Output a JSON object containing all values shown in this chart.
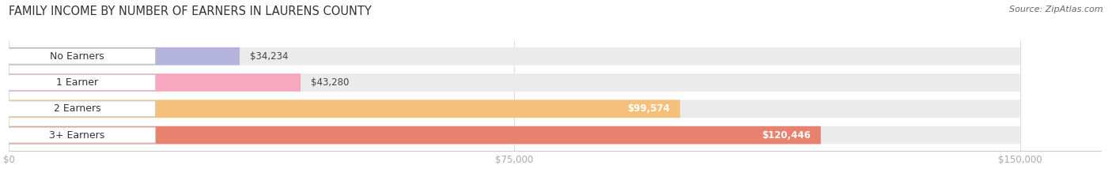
{
  "title": "FAMILY INCOME BY NUMBER OF EARNERS IN LAURENS COUNTY",
  "source": "Source: ZipAtlas.com",
  "categories": [
    "No Earners",
    "1 Earner",
    "2 Earners",
    "3+ Earners"
  ],
  "values": [
    34234,
    43280,
    99574,
    120446
  ],
  "bar_colors": [
    "#b3b3dd",
    "#f7a8c0",
    "#f5c07a",
    "#e8816e"
  ],
  "label_colors": [
    "#555555",
    "#555555",
    "#ffffff",
    "#ffffff"
  ],
  "bar_bg_color": "#ebebeb",
  "background_color": "#ffffff",
  "xlim": [
    0,
    162000
  ],
  "data_max": 150000,
  "xticks": [
    0,
    75000,
    150000
  ],
  "xticklabels": [
    "$0",
    "$75,000",
    "$150,000"
  ],
  "title_fontsize": 10.5,
  "source_fontsize": 8,
  "value_labels": [
    "$34,234",
    "$43,280",
    "$99,574",
    "$120,446"
  ]
}
